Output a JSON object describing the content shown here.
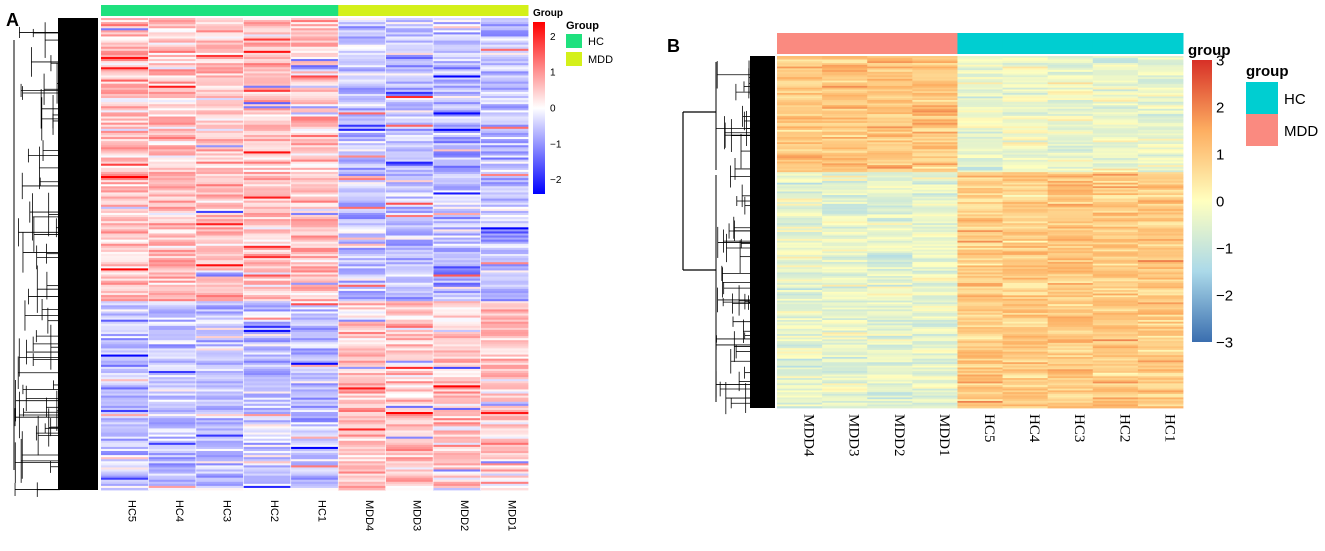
{
  "chart_data": [
    {
      "panel_label": "A",
      "type": "heatmap",
      "columns": [
        "HC5",
        "HC4",
        "HC3",
        "HC2",
        "HC1",
        "MDD4",
        "MDD3",
        "MDD2",
        "MDD1"
      ],
      "column_groups": [
        "HC",
        "HC",
        "HC",
        "HC",
        "HC",
        "MDD",
        "MDD",
        "MDD",
        "MDD"
      ],
      "group_colors": {
        "HC": "#1fe17e",
        "MDD": "#d4f01a"
      },
      "colorbar_title": "Group",
      "colorbar_ticks": [
        2,
        1,
        0,
        -1,
        -2
      ],
      "color_range": [
        -2.4,
        2.4
      ],
      "colormap": [
        "#0000ff",
        "#ffffff",
        "#ff0000"
      ],
      "legend_title": "Group",
      "legend": [
        {
          "label": "HC",
          "color": "#1fe17e"
        },
        {
          "label": "MDD",
          "color": "#d4f01a"
        }
      ],
      "row_dendrogram": true
    },
    {
      "panel_label": "B",
      "type": "heatmap",
      "columns": [
        "MDD4",
        "MDD3",
        "MDD2",
        "MDD1",
        "HC5",
        "HC4",
        "HC3",
        "HC2",
        "HC1"
      ],
      "column_groups": [
        "MDD",
        "MDD",
        "MDD",
        "MDD",
        "HC",
        "HC",
        "HC",
        "HC",
        "HC"
      ],
      "group_colors": {
        "HC": "#00ced1",
        "MDD": "#fa8a80"
      },
      "colorbar_title": "group",
      "colorbar_ticks": [
        3,
        2,
        1,
        0,
        -1,
        -2,
        -3
      ],
      "color_range": [
        -3,
        3
      ],
      "colormap": [
        "#3a6eaf",
        "#ffffbf",
        "#d73027"
      ],
      "legend_title": "group",
      "legend": [
        {
          "label": "HC",
          "color": "#00ced1"
        },
        {
          "label": "MDD",
          "color": "#fa8a80"
        }
      ],
      "row_dendrogram": true
    }
  ]
}
